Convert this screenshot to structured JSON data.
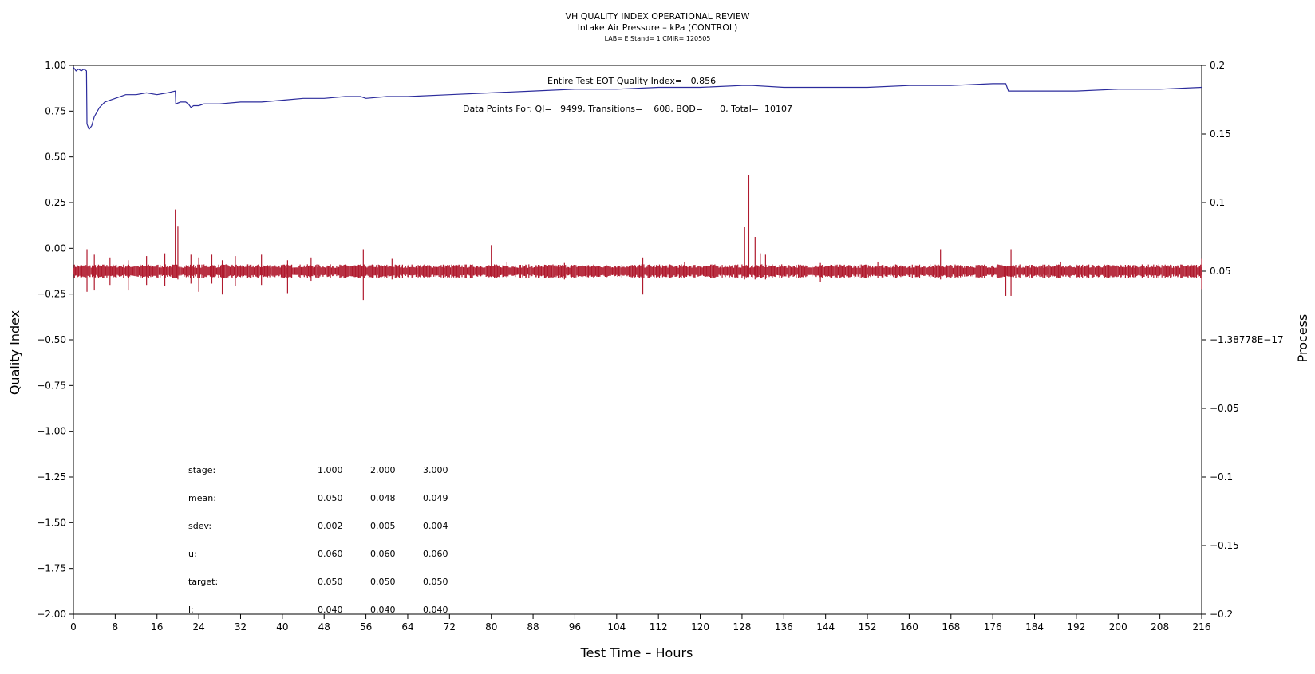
{
  "chart_data": {
    "type": "line",
    "title": "VH QUALITY INDEX OPERATIONAL REVIEW",
    "subtitle": "Intake Air Pressure – kPa (CONTROL)",
    "subsubtitle": "LAB= E Stand= 1 CMIR= 120505",
    "xlabel": "Test Time – Hours",
    "ylabel": "Quality Index",
    "y2label": "Process",
    "xlim": [
      0,
      216
    ],
    "ylim": [
      -2.0,
      1.0
    ],
    "y2lim": [
      -0.2,
      0.2
    ],
    "x_ticks": [
      0,
      8,
      16,
      24,
      32,
      40,
      48,
      56,
      64,
      72,
      80,
      88,
      96,
      104,
      112,
      120,
      128,
      136,
      144,
      152,
      160,
      168,
      176,
      184,
      192,
      200,
      208,
      216
    ],
    "y_ticks": [
      1.0,
      0.75,
      0.5,
      0.25,
      0.0,
      -0.25,
      -0.5,
      -0.75,
      -1.0,
      -1.25,
      -1.5,
      -1.75,
      -2.0
    ],
    "y_tick_labels": [
      "1.00",
      "0.75",
      "0.50",
      "0.25",
      "0.00",
      "−0.25",
      "−0.50",
      "−0.75",
      "−1.00",
      "−1.25",
      "−1.50",
      "−1.75",
      "−2.00"
    ],
    "y2_ticks": [
      0.2,
      0.15,
      0.1,
      0.05,
      0.0,
      -0.05,
      -0.1,
      -0.15,
      -0.2
    ],
    "y2_tick_labels": [
      "0.2",
      "0.15",
      "0.1",
      "0.05",
      "−1.38778E−17",
      "−0.05",
      "−0.1",
      "−0.15",
      "−0.2"
    ],
    "series": [
      {
        "axis": "left",
        "color": "#2b2b9c",
        "x": [
          0,
          0.5,
          1,
          1.5,
          2,
          2.5,
          2.6,
          3,
          3.5,
          4,
          5,
          6,
          8,
          10,
          12,
          14,
          16,
          18,
          19.5,
          19.6,
          20.5,
          21.5,
          22,
          22.5,
          23,
          24,
          25,
          28,
          32,
          36,
          40,
          44,
          48,
          52,
          55,
          56,
          60,
          64,
          72,
          80,
          88,
          96,
          104,
          112,
          120,
          128,
          130,
          136,
          144,
          152,
          160,
          168,
          176,
          178.5,
          179,
          184,
          192,
          200,
          208,
          216
        ],
        "values": [
          0.99,
          0.97,
          0.98,
          0.97,
          0.98,
          0.97,
          0.68,
          0.65,
          0.67,
          0.72,
          0.77,
          0.8,
          0.82,
          0.84,
          0.84,
          0.85,
          0.84,
          0.85,
          0.86,
          0.79,
          0.8,
          0.8,
          0.79,
          0.77,
          0.78,
          0.78,
          0.79,
          0.79,
          0.8,
          0.8,
          0.81,
          0.82,
          0.82,
          0.83,
          0.83,
          0.82,
          0.83,
          0.83,
          0.84,
          0.85,
          0.86,
          0.87,
          0.87,
          0.88,
          0.88,
          0.89,
          0.89,
          0.88,
          0.88,
          0.88,
          0.89,
          0.89,
          0.9,
          0.9,
          0.86,
          0.86,
          0.86,
          0.87,
          0.87,
          0.88
        ]
      },
      {
        "axis": "right",
        "color": "#b01a2e",
        "baseline": 0.05,
        "spikes": [
          [
            2.6,
            0.035,
            0.066
          ],
          [
            4,
            0.036,
            0.062
          ],
          [
            7,
            0.04,
            0.06
          ],
          [
            10.5,
            0.036,
            0.058
          ],
          [
            14,
            0.04,
            0.061
          ],
          [
            17.5,
            0.039,
            0.063
          ],
          [
            19.5,
            0.054,
            0.095
          ],
          [
            20,
            0.044,
            0.083
          ],
          [
            22.5,
            0.041,
            0.062
          ],
          [
            24,
            0.035,
            0.06
          ],
          [
            26.5,
            0.041,
            0.062
          ],
          [
            28.5,
            0.033,
            0.058
          ],
          [
            31,
            0.039,
            0.061
          ],
          [
            36,
            0.04,
            0.062
          ],
          [
            41,
            0.034,
            0.058
          ],
          [
            45.5,
            0.043,
            0.06
          ],
          [
            55.5,
            0.029,
            0.066
          ],
          [
            61,
            0.044,
            0.059
          ],
          [
            80,
            0.046,
            0.069
          ],
          [
            83,
            0.045,
            0.057
          ],
          [
            94,
            0.044,
            0.056
          ],
          [
            109,
            0.033,
            0.06
          ],
          [
            117,
            0.045,
            0.057
          ],
          [
            128.5,
            0.044,
            0.082
          ],
          [
            129.3,
            0.046,
            0.12
          ],
          [
            130.5,
            0.044,
            0.075
          ],
          [
            131.5,
            0.046,
            0.063
          ],
          [
            132.5,
            0.044,
            0.062
          ],
          [
            143,
            0.042,
            0.056
          ],
          [
            154,
            0.045,
            0.057
          ],
          [
            166,
            0.044,
            0.066
          ],
          [
            178.5,
            0.032,
            0.054
          ],
          [
            179.5,
            0.032,
            0.066
          ],
          [
            189,
            0.045,
            0.057
          ],
          [
            216,
            0.037,
            0.059
          ]
        ]
      }
    ],
    "annotations": {
      "quality_index": "Entire Test EOT Quality Index=   0.856",
      "data_points": "Data Points For: QI=   9499, Transitions=    608, BQD=      0, Total=  10107"
    },
    "stats_table": {
      "rows": [
        {
          "label": "stage:",
          "values": [
            "1.000",
            "2.000",
            "3.000"
          ]
        },
        {
          "label": "mean:",
          "values": [
            "0.050",
            "0.048",
            "0.049"
          ]
        },
        {
          "label": "sdev:",
          "values": [
            "0.002",
            "0.005",
            "0.004"
          ]
        },
        {
          "label": "u:",
          "values": [
            "0.060",
            "0.060",
            "0.060"
          ]
        },
        {
          "label": "target:",
          "values": [
            "0.050",
            "0.050",
            "0.050"
          ]
        },
        {
          "label": "l:",
          "values": [
            "0.040",
            "0.040",
            "0.040"
          ]
        }
      ]
    }
  }
}
